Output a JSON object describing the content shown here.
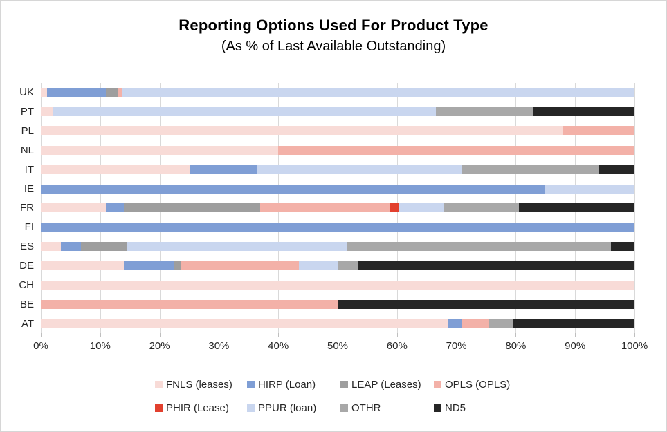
{
  "chart_data": {
    "type": "bar",
    "orientation": "horizontal-stacked",
    "title": "Reporting Options Used For Product Type",
    "subtitle": "(As % of Last Available Outstanding)",
    "xlim": [
      0,
      100
    ],
    "x_tick_step": 10,
    "x_tick_labels": [
      "0%",
      "10%",
      "20%",
      "30%",
      "40%",
      "50%",
      "60%",
      "70%",
      "80%",
      "90%",
      "100%"
    ],
    "grid": true,
    "legend_position": "bottom",
    "series": [
      {
        "key": "FNLS",
        "label": "FNLS (leases)",
        "color": "#f8dbd7"
      },
      {
        "key": "HIRP",
        "label": "HIRP (Loan)",
        "color": "#7f9ed5"
      },
      {
        "key": "LEAP",
        "label": "LEAP (Leases)",
        "color": "#9e9e9e"
      },
      {
        "key": "OPLS",
        "label": "OPLS (OPLS)",
        "color": "#f3b1a8"
      },
      {
        "key": "PHIR",
        "label": "PHIR (Lease)",
        "color": "#e2402e"
      },
      {
        "key": "PPUR",
        "label": "PPUR (loan)",
        "color": "#c9d6ef"
      },
      {
        "key": "OTHR",
        "label": "OTHR",
        "color": "#a8a8a8"
      },
      {
        "key": "ND5",
        "label": "ND5",
        "color": "#262626"
      }
    ],
    "categories": [
      "UK",
      "PT",
      "PL",
      "NL",
      "IT",
      "IE",
      "FR",
      "FI",
      "ES",
      "DE",
      "CH",
      "BE",
      "AT"
    ],
    "values": [
      [
        1,
        10,
        2,
        0.7,
        0,
        86.3,
        0,
        0
      ],
      [
        2,
        0,
        0,
        0,
        0,
        64.5,
        16.5,
        17
      ],
      [
        88,
        0,
        0,
        12,
        0,
        0,
        0,
        0
      ],
      [
        40,
        0,
        0,
        60,
        0,
        0,
        0,
        0
      ],
      [
        25,
        11.5,
        0,
        0,
        0,
        34.5,
        23,
        6
      ],
      [
        0,
        85,
        0,
        0,
        0,
        15,
        0,
        0
      ],
      [
        11,
        3,
        23,
        21.8,
        1.6,
        7.4,
        12.8,
        19.4
      ],
      [
        0,
        100,
        0,
        0,
        0,
        0,
        0,
        0
      ],
      [
        3.4,
        3.4,
        7.7,
        0,
        0,
        37,
        44.5,
        4
      ],
      [
        14,
        8.5,
        1,
        20,
        0,
        6.5,
        3.5,
        46.5
      ],
      [
        100,
        0,
        0,
        0,
        0,
        0,
        0,
        0
      ],
      [
        0,
        0,
        0,
        50,
        0,
        0,
        0,
        50
      ],
      [
        68.5,
        2.5,
        0,
        4.5,
        0,
        0,
        4,
        20.5
      ]
    ]
  }
}
